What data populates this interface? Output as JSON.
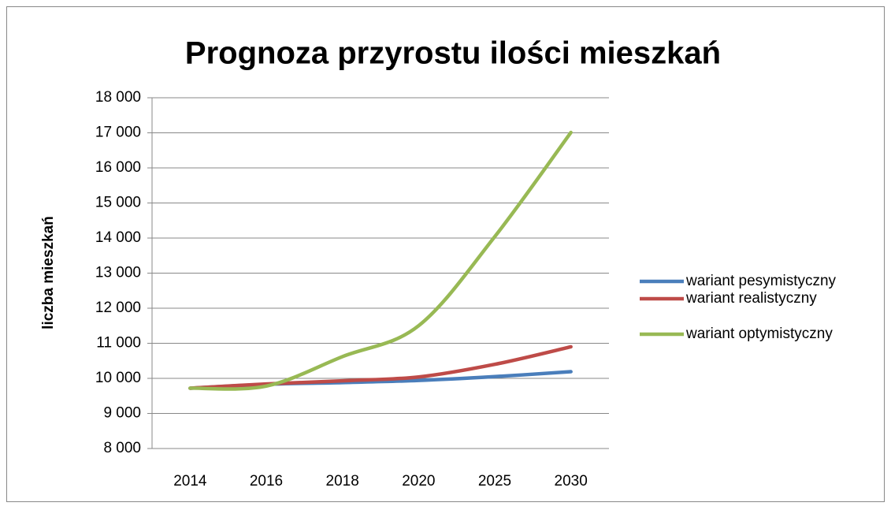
{
  "chart_data": {
    "type": "line",
    "title": "Prognoza przyrostu ilości mieszkań",
    "y_label": "liczba mieszkań",
    "categories": [
      "2014",
      "2016",
      "2018",
      "2020",
      "2025",
      "2030"
    ],
    "series": [
      {
        "name": "wariant pesymistyczny",
        "color": "#4a7ebb",
        "values": [
          9720,
          9830,
          9880,
          9940,
          10050,
          10190
        ]
      },
      {
        "name": "wariant realistyczny",
        "color": "#be4b48",
        "values": [
          9720,
          9840,
          9930,
          10040,
          10400,
          10900
        ]
      },
      {
        "name": "wariant optymistyczny",
        "color": "#98b954",
        "values": [
          9720,
          9780,
          10620,
          11500,
          14040,
          17010
        ]
      }
    ],
    "ylim": [
      8000,
      18000
    ],
    "yticks": [
      {
        "value": 8000,
        "label": "8 000"
      },
      {
        "value": 9000,
        "label": "9 000"
      },
      {
        "value": 10000,
        "label": "10 000"
      },
      {
        "value": 11000,
        "label": "11 000"
      },
      {
        "value": 12000,
        "label": "12 000"
      },
      {
        "value": 13000,
        "label": "13 000"
      },
      {
        "value": 14000,
        "label": "14 000"
      },
      {
        "value": 15000,
        "label": "15 000"
      },
      {
        "value": 16000,
        "label": "16 000"
      },
      {
        "value": 17000,
        "label": "17 000"
      },
      {
        "value": 18000,
        "label": "18 000"
      }
    ],
    "grid": true,
    "legend": "right"
  }
}
